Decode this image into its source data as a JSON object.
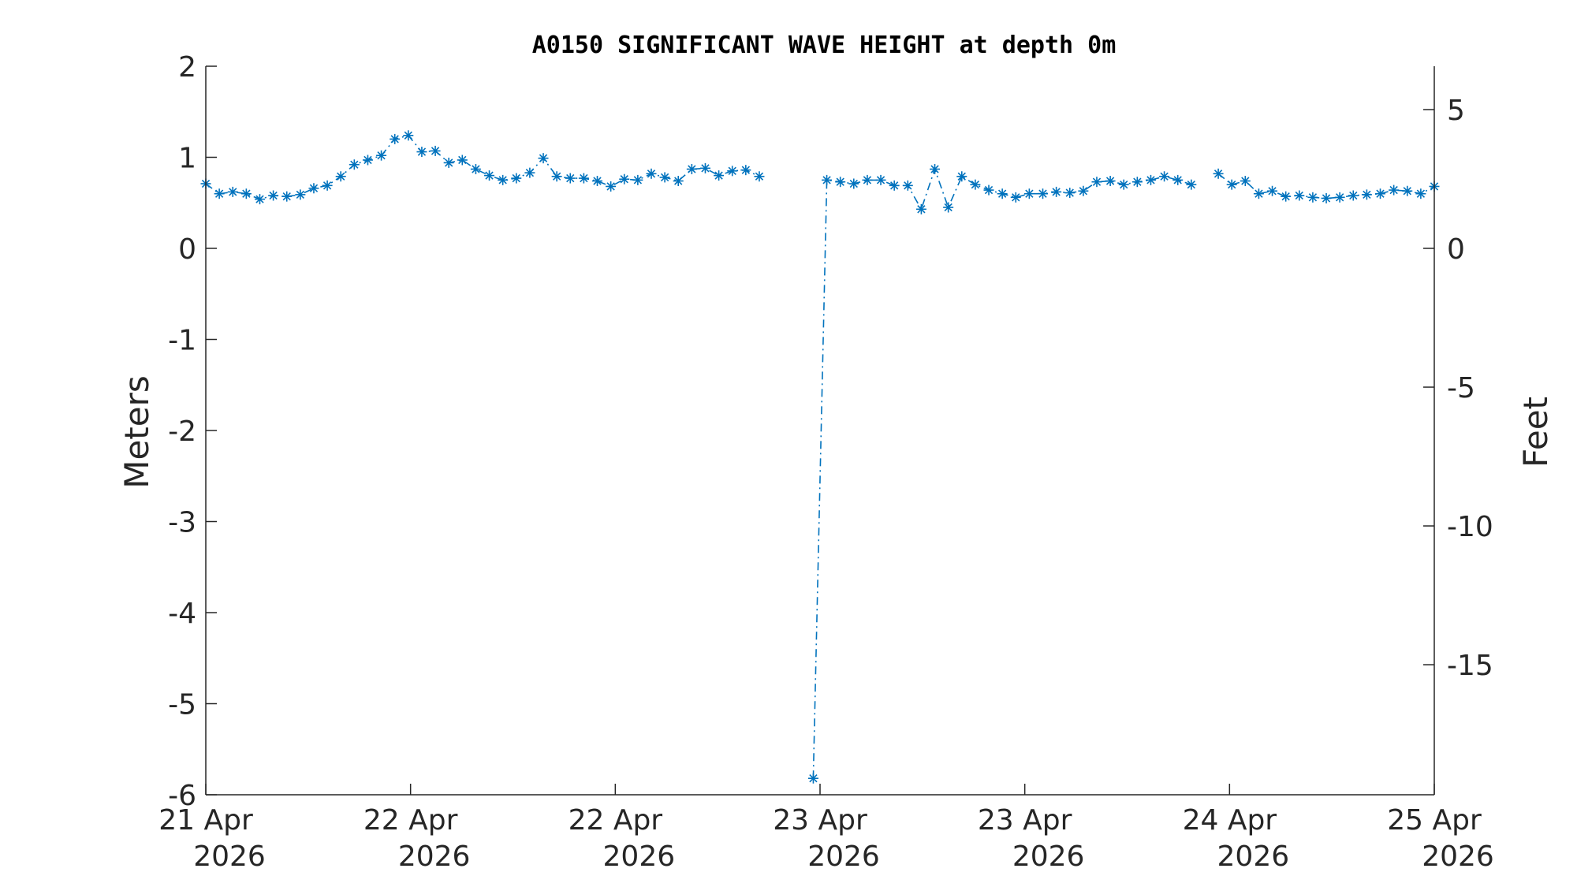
{
  "chart_data": {
    "type": "line",
    "title": "A0150 SIGNIFICANT WAVE HEIGHT at depth 0m",
    "ylabel": "Meters",
    "y2label": "Feet",
    "ylim": [
      -6,
      2
    ],
    "yticks": [
      "2",
      "1",
      "0",
      "-1",
      "-2",
      "-3",
      "-4",
      "-5",
      "-6"
    ],
    "y2ticks": [
      "5",
      "0",
      "-5",
      "-10",
      "-15"
    ],
    "xticks": [
      {
        "day": "21 Apr",
        "year": "2026"
      },
      {
        "day": "22 Apr",
        "year": "2026"
      },
      {
        "day": "22 Apr",
        "year": "2026"
      },
      {
        "day": "23 Apr",
        "year": "2026"
      },
      {
        "day": "23 Apr",
        "year": "2026"
      },
      {
        "day": "24 Apr",
        "year": "2026"
      },
      {
        "day": "25 Apr",
        "year": "2026"
      }
    ],
    "grid": false,
    "series": [
      {
        "color": "#0072bd",
        "marker": "asterisk",
        "values": [
          0.71,
          0.6,
          0.62,
          0.6,
          0.54,
          0.58,
          0.57,
          0.59,
          0.66,
          0.69,
          0.79,
          0.92,
          0.97,
          1.02,
          1.2,
          1.24,
          1.06,
          1.07,
          0.94,
          0.97,
          0.87,
          0.8,
          0.75,
          0.77,
          0.83,
          0.99,
          0.79,
          0.77,
          0.77,
          0.74,
          0.68,
          0.76,
          0.75,
          0.82,
          0.78,
          0.74,
          0.87,
          0.88,
          0.8,
          0.85,
          0.86,
          0.79,
          null,
          null,
          null,
          -5.82,
          0.75,
          0.73,
          0.71,
          0.75,
          0.75,
          0.69,
          0.69,
          0.43,
          0.87,
          0.45,
          0.79,
          0.7,
          0.64,
          0.6,
          0.56,
          0.6,
          0.6,
          0.62,
          0.61,
          0.63,
          0.73,
          0.74,
          0.7,
          0.73,
          0.75,
          0.79,
          0.75,
          0.7,
          null,
          0.82,
          0.7,
          0.74,
          0.6,
          0.63,
          0.57,
          0.58,
          0.56,
          0.55,
          0.56,
          0.58,
          0.59,
          0.6,
          0.64,
          0.63,
          0.6,
          0.68
        ]
      }
    ]
  }
}
